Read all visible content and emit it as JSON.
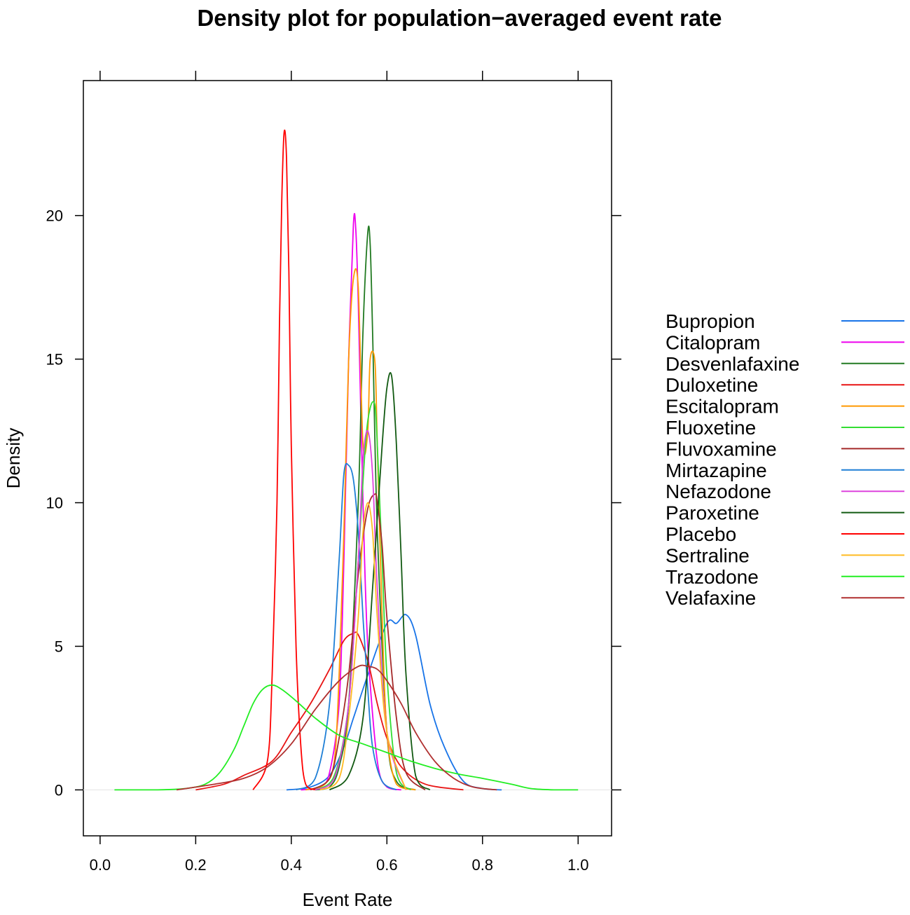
{
  "chart_data": {
    "type": "line",
    "title": "Density plot for population−averaged event rate",
    "xlabel": "Event Rate",
    "ylabel": "Density",
    "xlim": [
      -0.035,
      1.07
    ],
    "ylim": [
      -1.6,
      24.7
    ],
    "x_ticks": [
      0.0,
      0.2,
      0.4,
      0.6,
      0.8,
      1.0
    ],
    "x_tick_labels": [
      "0.0",
      "0.2",
      "0.4",
      "0.6",
      "0.8",
      "1.0"
    ],
    "y_ticks": [
      0,
      5,
      10,
      15,
      20
    ],
    "y_tick_labels": [
      "0",
      "5",
      "10",
      "15",
      "20"
    ],
    "grid": false,
    "legend_position": "right",
    "zero_line": true,
    "series": [
      {
        "name": "Bupropion",
        "color": "#1874e8",
        "x": [
          0.39,
          0.44,
          0.48,
          0.51,
          0.53,
          0.56,
          0.6,
          0.62,
          0.64,
          0.66,
          0.69,
          0.72,
          0.76,
          0.8,
          0.84
        ],
        "y": [
          0,
          0.1,
          0.5,
          1.5,
          2.5,
          4,
          5.8,
          5.8,
          6.1,
          5.4,
          3,
          1.5,
          0.3,
          0.05,
          0
        ]
      },
      {
        "name": "Citalopram",
        "color": "#ee00ee",
        "x": [
          0.42,
          0.46,
          0.48,
          0.5,
          0.51,
          0.52,
          0.53,
          0.535,
          0.54,
          0.55,
          0.56,
          0.58,
          0.6,
          0.63
        ],
        "y": [
          0,
          0.1,
          0.6,
          3,
          8,
          15,
          19.7,
          19.5,
          17,
          10,
          5,
          1,
          0.1,
          0
        ]
      },
      {
        "name": "Desvenlafaxine",
        "color": "#227a22",
        "x": [
          0.45,
          0.48,
          0.5,
          0.52,
          0.54,
          0.55,
          0.56,
          0.565,
          0.57,
          0.58,
          0.6,
          0.62,
          0.66
        ],
        "y": [
          0,
          0.1,
          0.8,
          3,
          10,
          16,
          19.4,
          19,
          16,
          9,
          2,
          0.3,
          0
        ]
      },
      {
        "name": "Duloxetine",
        "color": "#e81414",
        "x": [
          0.2,
          0.26,
          0.3,
          0.36,
          0.4,
          0.44,
          0.48,
          0.51,
          0.53,
          0.54,
          0.56,
          0.58,
          0.6,
          0.63,
          0.68,
          0.76
        ],
        "y": [
          0,
          0.2,
          0.5,
          1,
          2,
          3,
          4.2,
          5.2,
          5.45,
          5.4,
          4.5,
          3,
          1.8,
          0.8,
          0.2,
          0
        ]
      },
      {
        "name": "Escitalopram",
        "color": "#ff9900",
        "x": [
          0.43,
          0.47,
          0.49,
          0.5,
          0.51,
          0.52,
          0.53,
          0.54,
          0.55,
          0.56,
          0.565,
          0.575,
          0.58,
          0.59,
          0.6,
          0.62,
          0.66
        ],
        "y": [
          0,
          0.2,
          1,
          4,
          9,
          15,
          17.8,
          17.5,
          12,
          12.5,
          15,
          14.9,
          12,
          6,
          2,
          0.2,
          0
        ]
      },
      {
        "name": "Fluoxetine",
        "color": "#33dd33",
        "x": [
          0.45,
          0.49,
          0.52,
          0.54,
          0.555,
          0.565,
          0.575,
          0.58,
          0.59,
          0.6,
          0.62,
          0.65
        ],
        "y": [
          0,
          0.5,
          3,
          8,
          12,
          13.3,
          13.4,
          12,
          8,
          4,
          0.6,
          0
        ]
      },
      {
        "name": "Fluvoxamine",
        "color": "#a52a2a",
        "x": [
          0.44,
          0.48,
          0.5,
          0.52,
          0.54,
          0.56,
          0.575,
          0.58,
          0.59,
          0.6,
          0.62,
          0.64,
          0.68
        ],
        "y": [
          0,
          0.4,
          1.8,
          4,
          7.5,
          9.8,
          10.3,
          10,
          8.5,
          6,
          2.5,
          0.6,
          0
        ]
      },
      {
        "name": "Mirtazapine",
        "color": "#1e7fd6",
        "x": [
          0.41,
          0.45,
          0.48,
          0.5,
          0.51,
          0.52,
          0.53,
          0.54,
          0.55,
          0.56,
          0.57,
          0.59,
          0.62
        ],
        "y": [
          0,
          0.4,
          3,
          8,
          11,
          11.3,
          10.8,
          9,
          6,
          3.5,
          1.5,
          0.3,
          0
        ]
      },
      {
        "name": "Nefazodone",
        "color": "#dd44dd",
        "x": [
          0.45,
          0.49,
          0.52,
          0.54,
          0.55,
          0.56,
          0.57,
          0.58,
          0.6,
          0.64
        ],
        "y": [
          0,
          0.4,
          3,
          8,
          11.5,
          12.5,
          11,
          7,
          2,
          0
        ]
      },
      {
        "name": "Paroxetine",
        "color": "#125a12",
        "x": [
          0.48,
          0.52,
          0.55,
          0.57,
          0.59,
          0.6,
          0.61,
          0.62,
          0.63,
          0.64,
          0.66,
          0.69
        ],
        "y": [
          0,
          0.5,
          2.5,
          7,
          12,
          14,
          14.4,
          12,
          8,
          4,
          0.5,
          0
        ]
      },
      {
        "name": "Placebo",
        "color": "#ff0000",
        "x": [
          0.32,
          0.35,
          0.36,
          0.37,
          0.375,
          0.38,
          0.385,
          0.39,
          0.395,
          0.4,
          0.41,
          0.42,
          0.43,
          0.45
        ],
        "y": [
          0,
          1,
          4,
          10,
          16,
          20.5,
          22.9,
          22,
          18,
          12,
          5,
          1.5,
          0.2,
          0
        ]
      },
      {
        "name": "Sertraline",
        "color": "#ffbb22",
        "x": [
          0.46,
          0.5,
          0.52,
          0.54,
          0.55,
          0.56,
          0.57,
          0.58,
          0.6,
          0.64
        ],
        "y": [
          0,
          0.4,
          2.5,
          6,
          9,
          10,
          9,
          6,
          2,
          0
        ]
      },
      {
        "name": "Trazodone",
        "color": "#22ee22",
        "x": [
          0.03,
          0.12,
          0.18,
          0.22,
          0.25,
          0.28,
          0.3,
          0.32,
          0.34,
          0.36,
          0.38,
          0.41,
          0.45,
          0.5,
          0.55,
          0.6,
          0.65,
          0.7,
          0.75,
          0.8,
          0.86,
          0.9,
          0.95,
          1.0
        ],
        "y": [
          0,
          0,
          0.05,
          0.2,
          0.6,
          1.4,
          2.2,
          3,
          3.5,
          3.65,
          3.5,
          3.1,
          2.5,
          1.9,
          1.6,
          1.3,
          1,
          0.75,
          0.55,
          0.4,
          0.2,
          0.05,
          0,
          0
        ]
      },
      {
        "name": "Velafaxine",
        "color": "#b03030",
        "x": [
          0.16,
          0.24,
          0.3,
          0.35,
          0.4,
          0.45,
          0.5,
          0.54,
          0.56,
          0.58,
          0.6,
          0.63,
          0.66,
          0.7,
          0.74,
          0.78,
          0.83
        ],
        "y": [
          0,
          0.2,
          0.4,
          0.8,
          1.6,
          2.8,
          3.8,
          4.3,
          4.3,
          4.2,
          3.8,
          3,
          2,
          1,
          0.4,
          0.1,
          0
        ]
      }
    ]
  }
}
